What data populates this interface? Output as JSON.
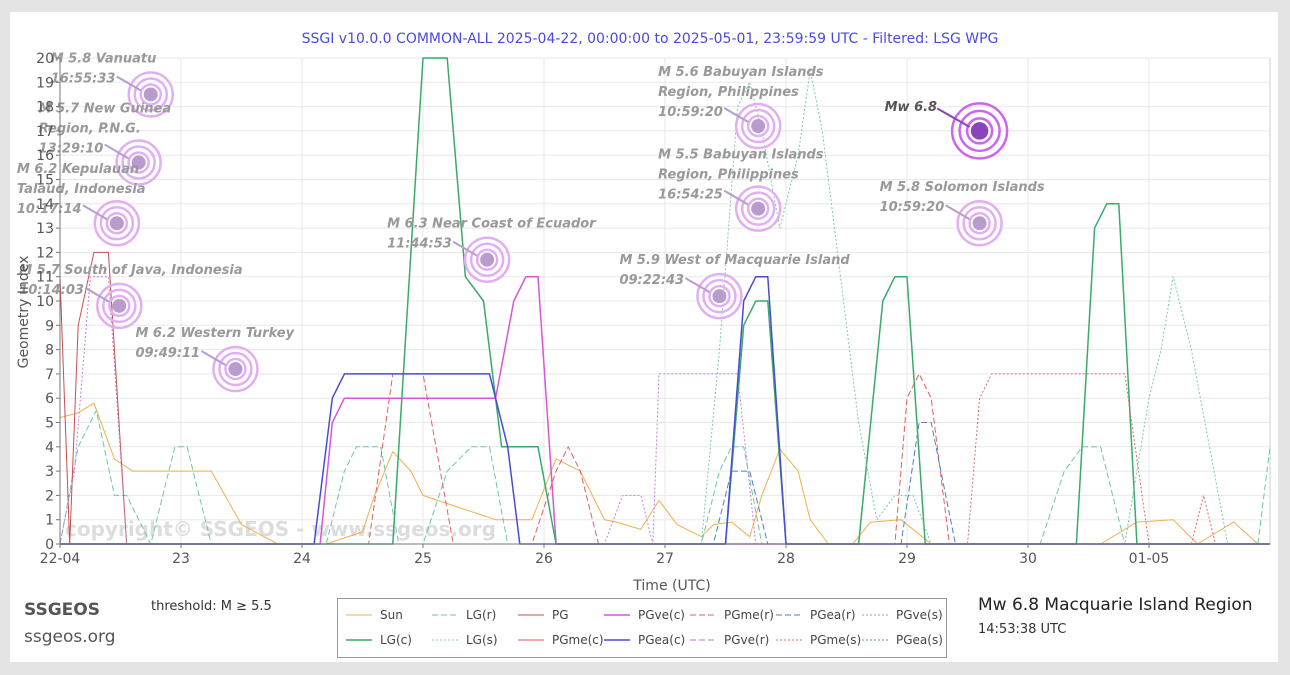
{
  "title": "SSGI v10.0.0 COMMON-ALL 2025-04-22, 00:00:00 to 2025-05-01, 23:59:59 UTC - Filtered: LSG WPG",
  "brand": {
    "name": "SSGEOS",
    "url": "ssgeos.org"
  },
  "threshold": "threshold: M ≥ 5.5",
  "watermark": "copyright© SSGEOS - www.ssgeos.org",
  "event": {
    "title": "Mw 6.8 Macquarie Island Region",
    "time": "14:53:38 UTC"
  },
  "colors": {
    "title": "#4a4ae0",
    "axis": "#555555",
    "grid": "#e8e8e8"
  },
  "chart_data": {
    "type": "line",
    "xlabel": "Time (UTC)",
    "ylabel": "Geometry Index",
    "xlim": [
      0,
      10
    ],
    "ylim": [
      0,
      20
    ],
    "x_ticks": [
      {
        "x": 0,
        "label": "22-04"
      },
      {
        "x": 1,
        "label": "23"
      },
      {
        "x": 2,
        "label": "24"
      },
      {
        "x": 3,
        "label": "25"
      },
      {
        "x": 4,
        "label": "26"
      },
      {
        "x": 5,
        "label": "27"
      },
      {
        "x": 6,
        "label": "28"
      },
      {
        "x": 7,
        "label": "29"
      },
      {
        "x": 8,
        "label": "30"
      },
      {
        "x": 9,
        "label": "01-05"
      }
    ],
    "y_ticks": [
      0,
      1,
      2,
      3,
      4,
      5,
      6,
      7,
      8,
      9,
      10,
      11,
      12,
      13,
      14,
      15,
      16,
      17,
      18,
      19,
      20
    ],
    "grid": true,
    "legend_placement": "bottom",
    "series": [
      {
        "name": "Sun",
        "color": "#f0b050",
        "dash": "solid",
        "width": 1,
        "points": [
          [
            0,
            5.2
          ],
          [
            0.15,
            5.4
          ],
          [
            0.28,
            5.8
          ],
          [
            0.45,
            3.5
          ],
          [
            0.6,
            3
          ],
          [
            1,
            3
          ],
          [
            1.25,
            3
          ],
          [
            1.5,
            0.8
          ],
          [
            1.8,
            0
          ],
          [
            2.2,
            0
          ],
          [
            2.5,
            0.5
          ],
          [
            2.6,
            2
          ],
          [
            2.75,
            3.8
          ],
          [
            2.9,
            3
          ],
          [
            3,
            2
          ],
          [
            3.3,
            1.5
          ],
          [
            3.6,
            1
          ],
          [
            3.9,
            1
          ],
          [
            4.1,
            3.5
          ],
          [
            4.3,
            3
          ],
          [
            4.5,
            1
          ],
          [
            4.6,
            0.9
          ],
          [
            4.8,
            0.6
          ],
          [
            4.95,
            1.8
          ],
          [
            5.1,
            0.8
          ],
          [
            5.3,
            0.3
          ],
          [
            5.4,
            0.8
          ],
          [
            5.55,
            0.9
          ],
          [
            5.7,
            0.3
          ],
          [
            5.8,
            2
          ],
          [
            5.95,
            3.9
          ],
          [
            6.1,
            3
          ],
          [
            6.2,
            1
          ],
          [
            6.35,
            0
          ],
          [
            6.55,
            0
          ],
          [
            6.7,
            0.9
          ],
          [
            6.95,
            1
          ],
          [
            7.2,
            0
          ],
          [
            8.6,
            0
          ],
          [
            8.9,
            0.9
          ],
          [
            9.2,
            1
          ],
          [
            9.4,
            0
          ],
          [
            9.7,
            0.9
          ],
          [
            9.9,
            0
          ]
        ]
      },
      {
        "name": "LG(r)",
        "color": "#6cc8a8",
        "dash": "long",
        "width": 1,
        "points": [
          [
            0,
            0
          ],
          [
            0.15,
            4
          ],
          [
            0.3,
            5.5
          ],
          [
            0.45,
            2
          ],
          [
            0.55,
            2
          ],
          [
            0.75,
            0
          ],
          [
            0.85,
            2
          ],
          [
            0.95,
            4
          ],
          [
            1.05,
            4
          ],
          [
            1.15,
            2
          ],
          [
            1.25,
            0
          ],
          [
            2.2,
            0
          ],
          [
            2.35,
            3
          ],
          [
            2.45,
            4
          ],
          [
            2.65,
            4
          ],
          [
            2.8,
            0
          ],
          [
            3.0,
            0
          ],
          [
            3.2,
            3
          ],
          [
            3.4,
            4
          ],
          [
            3.55,
            4
          ],
          [
            3.7,
            0
          ],
          [
            5.3,
            0
          ],
          [
            5.45,
            3
          ],
          [
            5.55,
            4
          ],
          [
            5.65,
            4
          ],
          [
            5.8,
            0
          ],
          [
            8.1,
            0
          ],
          [
            8.3,
            3
          ],
          [
            8.45,
            4
          ],
          [
            8.6,
            4
          ],
          [
            8.8,
            0
          ],
          [
            9.9,
            0
          ],
          [
            10,
            4
          ]
        ]
      },
      {
        "name": "PG",
        "color": "#c45050",
        "dash": "solid",
        "width": 1,
        "points": [
          [
            0,
            11
          ],
          [
            0.08,
            0
          ],
          [
            0.15,
            9
          ],
          [
            0.28,
            12
          ],
          [
            0.4,
            12
          ],
          [
            0.55,
            0
          ],
          [
            0.6,
            0
          ],
          [
            10,
            0
          ]
        ]
      },
      {
        "name": "PGve(c)",
        "color": "#d855d8",
        "dash": "solid",
        "width": 1.5,
        "points": [
          [
            0,
            0
          ],
          [
            2.15,
            0
          ],
          [
            2.25,
            5
          ],
          [
            2.35,
            6
          ],
          [
            3.5,
            6
          ],
          [
            3.6,
            6
          ],
          [
            3.75,
            10
          ],
          [
            3.85,
            11
          ],
          [
            3.95,
            11
          ],
          [
            4.1,
            0
          ],
          [
            10,
            0
          ]
        ]
      },
      {
        "name": "PGme(r)",
        "color": "#e06060",
        "dash": "long",
        "width": 1,
        "points": [
          [
            0,
            0
          ],
          [
            2.55,
            0
          ],
          [
            2.75,
            7
          ],
          [
            3.0,
            7
          ],
          [
            3.25,
            0
          ],
          [
            3.9,
            0
          ],
          [
            4.1,
            3
          ],
          [
            4.2,
            4
          ],
          [
            4.3,
            3
          ],
          [
            4.45,
            0
          ],
          [
            6.9,
            0
          ],
          [
            7.0,
            6
          ],
          [
            7.1,
            7
          ],
          [
            7.2,
            6
          ],
          [
            7.35,
            0
          ],
          [
            10,
            0
          ]
        ]
      },
      {
        "name": "PGea(r)",
        "color": "#5080c0",
        "dash": "long",
        "width": 1,
        "points": [
          [
            0,
            0
          ],
          [
            5.4,
            0
          ],
          [
            5.55,
            3
          ],
          [
            5.7,
            3
          ],
          [
            5.85,
            0
          ],
          [
            6.95,
            0
          ],
          [
            7.1,
            5
          ],
          [
            7.2,
            5
          ],
          [
            7.4,
            0
          ],
          [
            10,
            0
          ]
        ]
      },
      {
        "name": "PGve(s)",
        "color": "#c880d8",
        "dash": "short",
        "width": 1,
        "points": [
          [
            0,
            0
          ],
          [
            0.12,
            3
          ],
          [
            0.25,
            11
          ],
          [
            0.4,
            11
          ],
          [
            0.55,
            0
          ],
          [
            4.5,
            0
          ],
          [
            4.65,
            2
          ],
          [
            4.8,
            2
          ],
          [
            4.9,
            0
          ],
          [
            4.95,
            7
          ],
          [
            5.6,
            7
          ],
          [
            5.75,
            0
          ],
          [
            10,
            0
          ]
        ]
      },
      {
        "name": "LG(c)",
        "color": "#3aaa6a",
        "dash": "solid",
        "width": 1.5,
        "points": [
          [
            0,
            0
          ],
          [
            2.75,
            0
          ],
          [
            2.9,
            12
          ],
          [
            3.0,
            20
          ],
          [
            3.2,
            20
          ],
          [
            3.35,
            11
          ],
          [
            3.5,
            10
          ],
          [
            3.65,
            4
          ],
          [
            3.8,
            4
          ],
          [
            3.95,
            4
          ],
          [
            4.1,
            0
          ],
          [
            5.5,
            0
          ],
          [
            5.65,
            9
          ],
          [
            5.75,
            10
          ],
          [
            5.85,
            10
          ],
          [
            6.0,
            0
          ],
          [
            6.6,
            0
          ],
          [
            6.8,
            10
          ],
          [
            6.9,
            11
          ],
          [
            7.0,
            11
          ],
          [
            7.15,
            0
          ],
          [
            8.4,
            0
          ],
          [
            8.55,
            13
          ],
          [
            8.65,
            14
          ],
          [
            8.75,
            14
          ],
          [
            8.9,
            0
          ],
          [
            10,
            0
          ]
        ]
      },
      {
        "name": "LG(s)",
        "color": "#7cc8b8",
        "dash": "short",
        "width": 1,
        "points": [
          [
            0,
            0
          ],
          [
            5.3,
            0
          ],
          [
            5.45,
            8
          ],
          [
            5.6,
            18
          ],
          [
            5.7,
            19
          ],
          [
            5.8,
            17
          ],
          [
            5.95,
            13
          ],
          [
            6.1,
            16
          ],
          [
            6.2,
            19.5
          ],
          [
            6.3,
            17
          ],
          [
            6.45,
            11
          ],
          [
            6.6,
            5
          ],
          [
            6.75,
            1
          ],
          [
            6.9,
            2
          ],
          [
            7.05,
            2
          ],
          [
            7.2,
            0
          ],
          [
            8.8,
            0
          ],
          [
            9.0,
            6
          ],
          [
            9.1,
            8
          ],
          [
            9.2,
            11
          ],
          [
            9.35,
            8
          ],
          [
            9.5,
            4
          ],
          [
            9.65,
            0
          ],
          [
            10,
            0
          ]
        ]
      },
      {
        "name": "PGme(c)",
        "color": "#e05050",
        "dash": "solid",
        "width": 1,
        "points": [
          [
            0,
            0
          ],
          [
            10,
            0
          ]
        ]
      },
      {
        "name": "PGea(c)",
        "color": "#4a4ad8",
        "dash": "solid",
        "width": 1.5,
        "points": [
          [
            0,
            0
          ],
          [
            2.1,
            0
          ],
          [
            2.25,
            6
          ],
          [
            2.35,
            7
          ],
          [
            3.55,
            7
          ],
          [
            3.7,
            4
          ],
          [
            3.8,
            0
          ],
          [
            5.5,
            0
          ],
          [
            5.65,
            10
          ],
          [
            5.75,
            11
          ],
          [
            5.85,
            11
          ],
          [
            6.0,
            0
          ],
          [
            10,
            0
          ]
        ]
      },
      {
        "name": "PGve(r)",
        "color": "#c070d0",
        "dash": "long",
        "width": 1,
        "points": [
          [
            0,
            0
          ],
          [
            10,
            0
          ]
        ]
      },
      {
        "name": "PGme(s)",
        "color": "#e06a6a",
        "dash": "short",
        "width": 1,
        "points": [
          [
            0,
            0
          ],
          [
            7.5,
            0
          ],
          [
            7.6,
            6
          ],
          [
            7.7,
            7
          ],
          [
            8.8,
            7
          ],
          [
            9.0,
            0
          ],
          [
            9.35,
            0
          ],
          [
            9.45,
            2
          ],
          [
            9.55,
            0
          ],
          [
            10,
            0
          ]
        ]
      },
      {
        "name": "PGea(s)",
        "color": "#6a8ad8",
        "dash": "short",
        "width": 1,
        "points": [
          [
            0,
            0
          ],
          [
            10,
            0
          ]
        ]
      }
    ],
    "annotations": [
      {
        "label": "M 5.8 Vanuatu",
        "time": "16:55:33",
        "x": 0.75,
        "y": 18.5,
        "color": "#999999"
      },
      {
        "label": "M 5.7 New Guinea Region, P.N.G.",
        "time": "13:29:10",
        "x": 0.65,
        "y": 15.7,
        "color": "#999999"
      },
      {
        "label": "M 6.2 Kepulauan Talaud, Indonesia",
        "time": "10:17:14",
        "x": 0.47,
        "y": 13.2,
        "color": "#999999"
      },
      {
        "label": "M 5.7 South of Java, Indonesia",
        "time": "10:14:03",
        "x": 0.49,
        "y": 9.8,
        "color": "#999999"
      },
      {
        "label": "M 6.2 Western Turkey",
        "time": "09:49:11",
        "x": 1.45,
        "y": 7.2,
        "color": "#999999"
      },
      {
        "label": "M 6.3 Near Coast of Ecuador",
        "time": "11:44:53",
        "x": 3.53,
        "y": 11.7,
        "color": "#999999"
      },
      {
        "label": "M 5.9 West of Macquarie Island",
        "time": "09:22:43",
        "x": 5.45,
        "y": 10.2,
        "color": "#999999"
      },
      {
        "label": "M 5.6 Babuyan Islands Region, Philippines",
        "time": "10:59:20",
        "x": 5.77,
        "y": 17.2,
        "color": "#999999"
      },
      {
        "label": "M 5.5 Babuyan Islands Region, Philippines",
        "time": "16:54:25",
        "x": 5.77,
        "y": 13.8,
        "color": "#999999"
      },
      {
        "label": "M 5.8 Solomon Islands",
        "time": "10:59:20",
        "x": 7.6,
        "y": 13.2,
        "color": "#999999"
      },
      {
        "label": "Mw 6.8",
        "time": "",
        "x": 7.6,
        "y": 17.0,
        "color": "#555555",
        "main": true
      }
    ]
  }
}
